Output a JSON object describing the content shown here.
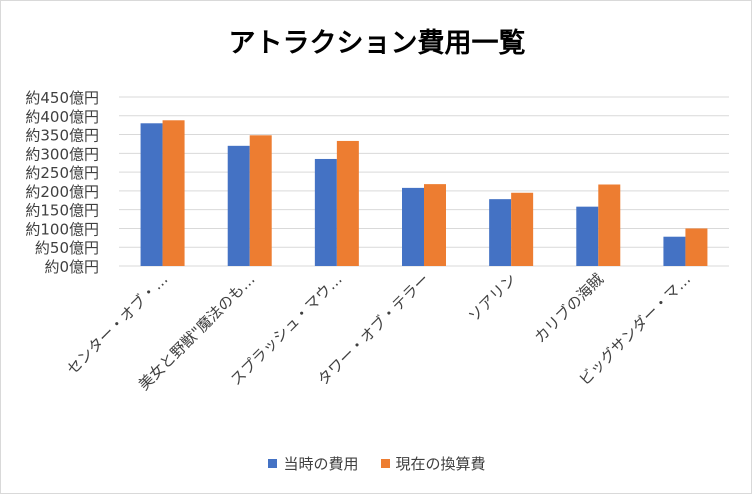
{
  "chart_data": {
    "type": "bar",
    "title": "アトラクション費用一覧",
    "categories": [
      "センター・オブ・…",
      "美女と野獣\"魔法のも…",
      "スプラッシュ・マウ…",
      "タワー・オブ・テラー",
      "ソアリン",
      "カリブの海賊",
      "ビッグサンダー・マ…"
    ],
    "series": [
      {
        "name": "当時の費用",
        "color": "#4472c4",
        "values": [
          380,
          320,
          285,
          208,
          178,
          158,
          78
        ]
      },
      {
        "name": "現在の換算費",
        "color": "#ed7d31",
        "values": [
          388,
          348,
          333,
          218,
          195,
          217,
          100
        ]
      }
    ],
    "ylim": [
      0,
      450
    ],
    "y_ticks": [
      {
        "value": 0,
        "label": "約0億円"
      },
      {
        "value": 50,
        "label": "約50億円"
      },
      {
        "value": 100,
        "label": "約100億円"
      },
      {
        "value": 150,
        "label": "約150億円"
      },
      {
        "value": 200,
        "label": "約200億円"
      },
      {
        "value": 250,
        "label": "約250億円"
      },
      {
        "value": 300,
        "label": "約300億円"
      },
      {
        "value": 350,
        "label": "約350億円"
      },
      {
        "value": 400,
        "label": "約400億円"
      },
      {
        "value": 450,
        "label": "約450億円"
      }
    ],
    "grid": true,
    "legend_position": "bottom",
    "xlabel": "",
    "ylabel": ""
  }
}
